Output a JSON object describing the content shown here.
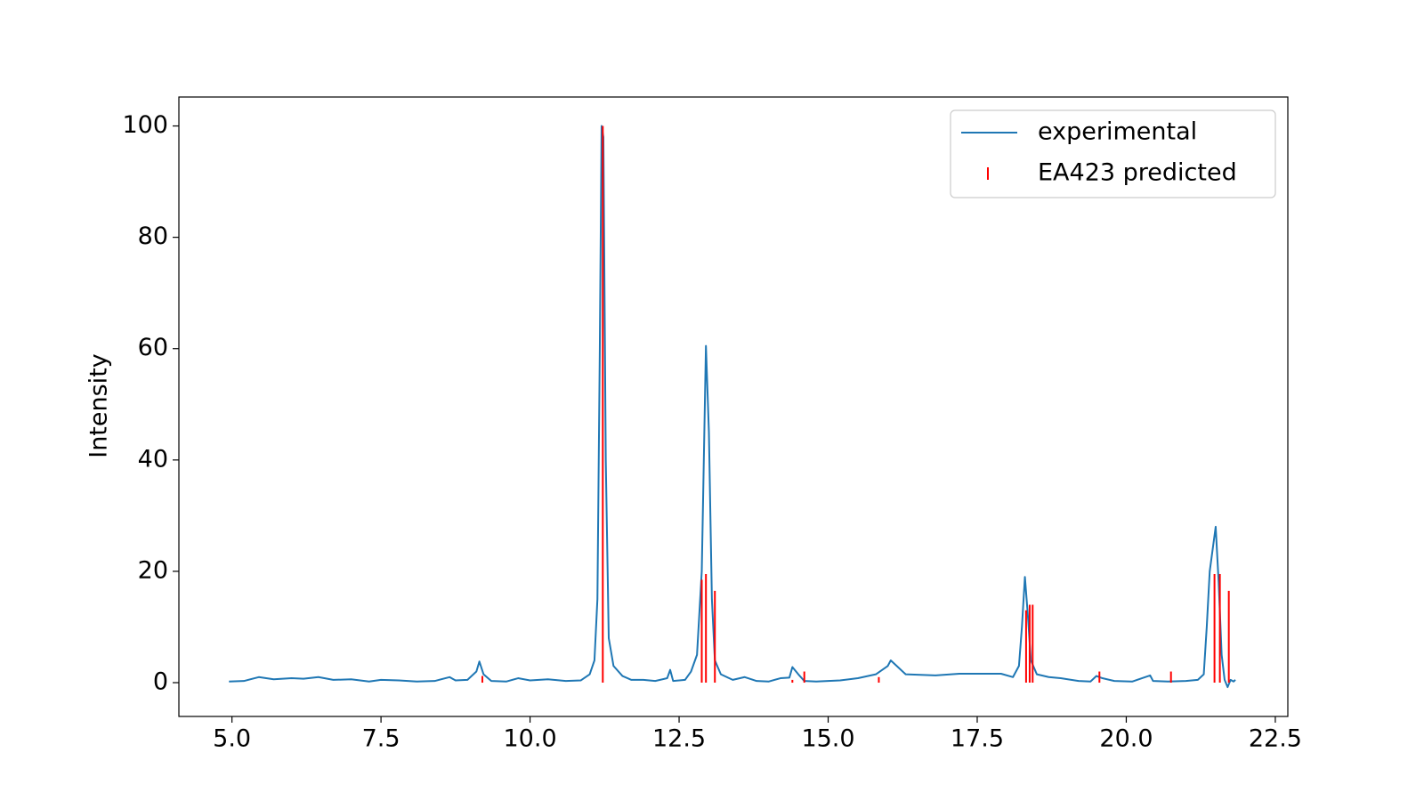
{
  "chart_data": {
    "type": "line",
    "ylabel": "Intensity",
    "xlim": [
      4.11,
      22.71
    ],
    "ylim": [
      -6.07,
      105.2
    ],
    "xticks": [
      {
        "value": 5,
        "label": "5.0"
      },
      7.5,
      {
        "value": 10,
        "label": "10.0"
      },
      12.5,
      {
        "value": 15,
        "label": "15.0"
      },
      17.5,
      {
        "value": 20,
        "label": "20.0"
      },
      22.5
    ],
    "yticks": [
      0,
      20,
      40,
      60,
      80,
      100
    ],
    "grid": false,
    "legend": "upper right",
    "series": [
      {
        "name": "experimental",
        "color": "#1f77b4",
        "type": "line",
        "x": [
          4.95,
          5.2,
          5.45,
          5.7,
          6.0,
          6.2,
          6.45,
          6.7,
          7.0,
          7.3,
          7.5,
          7.8,
          8.1,
          8.4,
          8.65,
          8.75,
          8.95,
          9.1,
          9.15,
          9.22,
          9.35,
          9.6,
          9.8,
          10.0,
          10.3,
          10.6,
          10.85,
          11.0,
          11.08,
          11.13,
          11.17,
          11.2,
          11.23,
          11.27,
          11.32,
          11.4,
          11.55,
          11.7,
          11.9,
          12.1,
          12.3,
          12.35,
          12.4,
          12.6,
          12.7,
          12.8,
          12.88,
          12.95,
          13.0,
          13.05,
          13.1,
          13.2,
          13.4,
          13.6,
          13.8,
          14.0,
          14.2,
          14.35,
          14.4,
          14.5,
          14.6,
          14.8,
          15.2,
          15.5,
          15.8,
          16.0,
          16.05,
          16.15,
          16.3,
          16.8,
          17.2,
          17.6,
          17.9,
          18.1,
          18.2,
          18.25,
          18.3,
          18.35,
          18.4,
          18.5,
          18.7,
          18.9,
          19.2,
          19.4,
          19.5,
          19.6,
          19.8,
          20.1,
          20.4,
          20.45,
          20.7,
          21.0,
          21.2,
          21.3,
          21.35,
          21.4,
          21.45,
          21.5,
          21.55,
          21.6,
          21.65,
          21.7,
          21.75,
          21.8,
          21.83
        ],
        "values": [
          0.2,
          0.3,
          1.0,
          0.6,
          0.8,
          0.7,
          1.0,
          0.5,
          0.6,
          0.2,
          0.5,
          0.4,
          0.2,
          0.3,
          1.0,
          0.4,
          0.5,
          2.0,
          3.8,
          1.5,
          0.3,
          0.2,
          0.8,
          0.4,
          0.6,
          0.3,
          0.4,
          1.5,
          4,
          15,
          60,
          100,
          98,
          40,
          8,
          3,
          1.2,
          0.5,
          0.5,
          0.3,
          0.8,
          2.3,
          0.3,
          0.5,
          2,
          5,
          20,
          60.5,
          45,
          15,
          4,
          1.5,
          0.5,
          1,
          0.3,
          0.2,
          0.8,
          0.9,
          2.8,
          1.5,
          0.3,
          0.2,
          0.4,
          0.8,
          1.5,
          3.0,
          4.0,
          3,
          1.5,
          1.3,
          1.6,
          1.6,
          1.6,
          1.0,
          3,
          10,
          19,
          12,
          4,
          1.5,
          1.0,
          0.8,
          0.3,
          0.2,
          1.2,
          0.8,
          0.3,
          0.2,
          1.3,
          0.3,
          0.2,
          0.3,
          0.5,
          1.5,
          10,
          20,
          24,
          28,
          18,
          5,
          0.5,
          -0.8,
          0.5,
          0.2,
          0.5
        ]
      },
      {
        "name": "EA423 predicted",
        "color": "#ff0000",
        "type": "stem",
        "x": [
          9.2,
          11.22,
          12.88,
          12.95,
          13.1,
          14.4,
          14.6,
          15.85,
          18.32,
          18.38,
          18.43,
          19.55,
          20.75,
          21.48,
          21.57,
          21.72
        ],
        "values": [
          1.2,
          100,
          18.5,
          19.5,
          16.5,
          0.5,
          2,
          1,
          13,
          14,
          14,
          2,
          2,
          19.5,
          19.5,
          16.5
        ]
      }
    ]
  }
}
